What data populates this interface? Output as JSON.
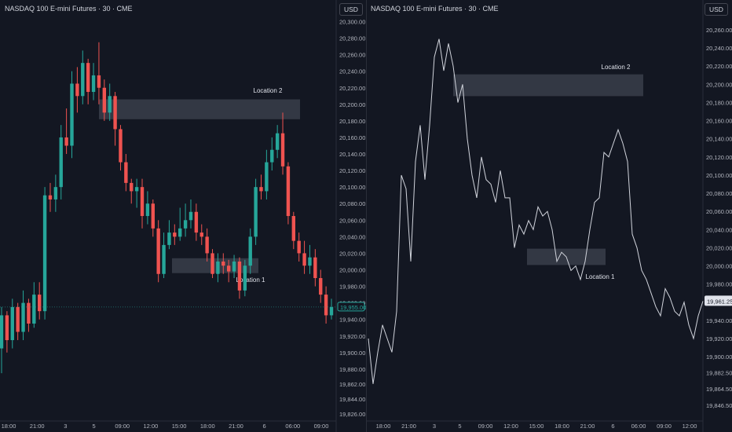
{
  "colors": {
    "background": "#131722",
    "up": "#26a69a",
    "down": "#ef5350",
    "line": "#d1d4dc",
    "zone": "#3a3e4a",
    "text": "#d1d4dc",
    "axis_text": "#b2b5be",
    "price_label_bg": "#e0e3eb",
    "price_label_text": "#131722"
  },
  "left": {
    "title": "NASDAQ 100 E-mini Futures · 30 · CME",
    "currency": "USD",
    "current_price": "19,955.00",
    "yticks": [
      "20,300.00",
      "20,280.00",
      "20,260.00",
      "20,240.00",
      "20,220.00",
      "20,200.00",
      "20,180.00",
      "20,160.00",
      "20,140.00",
      "20,120.00",
      "20,100.00",
      "20,080.00",
      "20,060.00",
      "20,040.00",
      "20,020.00",
      "20,000.00",
      "19,980.00",
      "19,960.00",
      "19,940.00",
      "19,920.00",
      "19,900.00",
      "19,880.00",
      "19,862.00",
      "19,844.00",
      "19,826.00"
    ],
    "xticks": [
      "18:00",
      "21:00",
      "3",
      "5",
      "09:00",
      "12:00",
      "15:00",
      "18:00",
      "21:00",
      "6",
      "06:00",
      "09:00"
    ]
  },
  "right": {
    "title": "NASDAQ 100 E-mini Futures · 30 · CME",
    "currency": "USD",
    "current_price": "19,961.25",
    "yticks": [
      "20,260.00",
      "20,240.00",
      "20,220.00",
      "20,200.00",
      "20,180.00",
      "20,160.00",
      "20,140.00",
      "20,120.00",
      "20,100.00",
      "20,080.00",
      "20,060.00",
      "20,040.00",
      "20,020.00",
      "20,000.00",
      "19,980.00",
      "19,960.00",
      "19,940.00",
      "19,920.00",
      "19,900.00",
      "19,882.50",
      "19,864.50",
      "19,846.50"
    ],
    "xticks": [
      "18:00",
      "21:00",
      "3",
      "5",
      "09:00",
      "12:00",
      "15:00",
      "18:00",
      "21:00",
      "6",
      "06:00",
      "09:00",
      "12:00"
    ]
  },
  "chart_data": [
    {
      "type": "candlestick",
      "title": "NASDAQ 100 E-mini Futures · 30 · CME",
      "ylim": [
        19820,
        20310
      ],
      "last_price": 19955,
      "zones": [
        {
          "label": "Location 2",
          "low": 20182,
          "high": 20206
        },
        {
          "label": "Location 1",
          "low": 19996,
          "high": 20014
        }
      ],
      "candles": [
        [
          19905,
          19945,
          19875,
          19955
        ],
        [
          19945,
          19915,
          19900,
          19950
        ],
        [
          19915,
          19955,
          19905,
          19965
        ],
        [
          19955,
          19925,
          19915,
          19960
        ],
        [
          19925,
          19960,
          19915,
          19975
        ],
        [
          19960,
          19935,
          19925,
          19965
        ],
        [
          19935,
          19970,
          19930,
          19985
        ],
        [
          19970,
          19950,
          19940,
          19985
        ],
        [
          19950,
          20090,
          19940,
          20100
        ],
        [
          20090,
          20085,
          20070,
          20105
        ],
        [
          20085,
          20100,
          20070,
          20115
        ],
        [
          20100,
          20160,
          20085,
          20175
        ],
        [
          20160,
          20150,
          20140,
          20195
        ],
        [
          20150,
          20225,
          20135,
          20240
        ],
        [
          20225,
          20210,
          20190,
          20245
        ],
        [
          20210,
          20250,
          20200,
          20265
        ],
        [
          20250,
          20215,
          20200,
          20255
        ],
        [
          20215,
          20235,
          20205,
          20250
        ],
        [
          20235,
          20220,
          20200,
          20275
        ],
        [
          20220,
          20190,
          20180,
          20230
        ],
        [
          20190,
          20210,
          20180,
          20225
        ],
        [
          20210,
          20170,
          20150,
          20215
        ],
        [
          20170,
          20130,
          20120,
          20175
        ],
        [
          20130,
          20105,
          20095,
          20140
        ],
        [
          20105,
          20095,
          20080,
          20110
        ],
        [
          20095,
          20100,
          20075,
          20110
        ],
        [
          20100,
          20065,
          20050,
          20110
        ],
        [
          20065,
          20080,
          20055,
          20095
        ],
        [
          20080,
          20050,
          20040,
          20085
        ],
        [
          20050,
          19995,
          19985,
          20060
        ],
        [
          19995,
          20030,
          19990,
          20045
        ],
        [
          20030,
          20045,
          20025,
          20060
        ],
        [
          20045,
          20040,
          20030,
          20055
        ],
        [
          20040,
          20050,
          20035,
          20075
        ],
        [
          20050,
          20060,
          20040,
          20080
        ],
        [
          20060,
          20070,
          20050,
          20085
        ],
        [
          20070,
          20045,
          20035,
          20080
        ],
        [
          20045,
          20040,
          20030,
          20055
        ],
        [
          20040,
          20020,
          20010,
          20050
        ],
        [
          20020,
          19995,
          19990,
          20025
        ],
        [
          19995,
          20010,
          19985,
          20020
        ],
        [
          20010,
          20005,
          19995,
          20020
        ],
        [
          20005,
          19998,
          19985,
          20012
        ],
        [
          19998,
          20010,
          19990,
          20018
        ],
        [
          20010,
          19975,
          19965,
          20015
        ],
        [
          19975,
          20005,
          19968,
          20012
        ],
        [
          20005,
          20040,
          19995,
          20050
        ],
        [
          20040,
          20100,
          20030,
          20110
        ],
        [
          20100,
          20095,
          20085,
          20115
        ],
        [
          20095,
          20130,
          20085,
          20145
        ],
        [
          20130,
          20145,
          20120,
          20160
        ],
        [
          20145,
          20165,
          20135,
          20175
        ],
        [
          20165,
          20125,
          20115,
          20190
        ],
        [
          20125,
          20065,
          20055,
          20130
        ],
        [
          20065,
          20035,
          20025,
          20070
        ],
        [
          20035,
          20020,
          20010,
          20045
        ],
        [
          20020,
          20005,
          19995,
          20035
        ],
        [
          20005,
          20015,
          19995,
          20030
        ],
        [
          20015,
          19990,
          19980,
          20025
        ],
        [
          19990,
          19970,
          19960,
          20000
        ],
        [
          19970,
          19945,
          19935,
          19980
        ],
        [
          19945,
          19955,
          19940,
          19965
        ]
      ]
    },
    {
      "type": "line",
      "title": "NASDAQ 100 E-mini Futures · 30 · CME",
      "ylim": [
        19835,
        20265
      ],
      "last_price": 19961.25,
      "zones": [
        {
          "label": "Location 2",
          "low": 20187,
          "high": 20211
        },
        {
          "label": "Location 1",
          "low": 20001,
          "high": 20019
        }
      ],
      "values": [
        19920,
        19870,
        19905,
        19935,
        19920,
        19905,
        19950,
        20100,
        20085,
        20005,
        20115,
        20155,
        20095,
        20155,
        20230,
        20250,
        20215,
        20245,
        20220,
        20180,
        20200,
        20140,
        20100,
        20075,
        20120,
        20095,
        20090,
        20070,
        20105,
        20075,
        20075,
        20020,
        20045,
        20035,
        20050,
        20040,
        20065,
        20055,
        20060,
        20040,
        20005,
        20015,
        20010,
        19995,
        20000,
        19985,
        20005,
        20040,
        20070,
        20075,
        20125,
        20120,
        20135,
        20150,
        20135,
        20115,
        20035,
        20020,
        19995,
        19985,
        19970,
        19955,
        19945,
        19975,
        19965,
        19950,
        19945,
        19960,
        19935,
        19920,
        19945,
        19961.25
      ]
    }
  ]
}
